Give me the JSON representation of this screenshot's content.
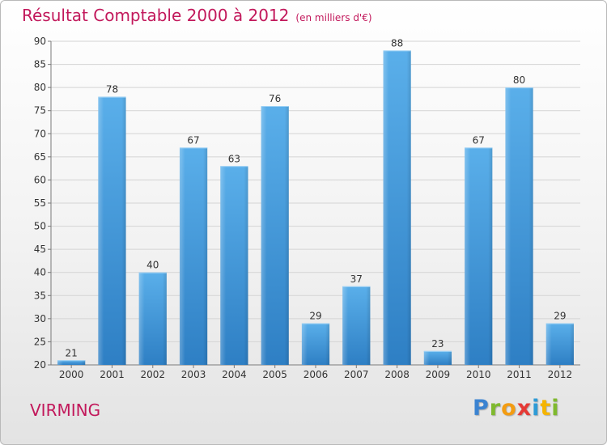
{
  "header": {
    "title": "Résultat Comptable 2000 à 2012",
    "unit": "(en milliers d'€)"
  },
  "footer": {
    "commune": "VIRMING",
    "logo_letters": [
      "P",
      "r",
      "o",
      "x",
      "i",
      "t",
      "i"
    ],
    "logo_colors": [
      "#3b83d1",
      "#7fb92e",
      "#f39c12",
      "#e53935",
      "#2e9bd6",
      "#f5b400",
      "#7fb92e"
    ]
  },
  "colors": {
    "title": "#c2185b",
    "bar_light": "#5aafea",
    "bar_dark": "#2e7fc4",
    "grid": "#d4d4d4",
    "axis": "#7a7a7a"
  },
  "chart_data": {
    "type": "bar",
    "categories": [
      "2000",
      "2001",
      "2002",
      "2003",
      "2004",
      "2005",
      "2006",
      "2007",
      "2008",
      "2009",
      "2010",
      "2011",
      "2012"
    ],
    "values": [
      21,
      78,
      40,
      67,
      63,
      76,
      29,
      37,
      88,
      23,
      67,
      80,
      29
    ],
    "ylim": [
      20,
      90
    ],
    "yticks": [
      20,
      25,
      30,
      35,
      40,
      45,
      50,
      55,
      60,
      65,
      70,
      75,
      80,
      85,
      90
    ],
    "grid": true,
    "legend": "none"
  }
}
